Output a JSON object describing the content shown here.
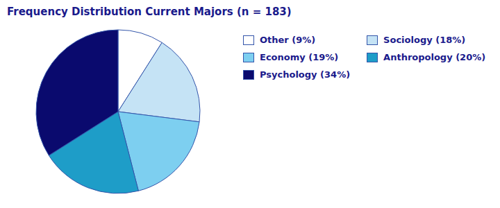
{
  "chart_data": {
    "type": "pie",
    "title": "Frequency Distribution Current Majors (n = 183)",
    "categories": [
      "Other (9%)",
      "Sociology (18%)",
      "Economy (19%)",
      "Anthropology (20%)",
      "Psychology (34%)"
    ],
    "values": [
      9,
      18,
      19,
      20,
      34
    ],
    "colors": [
      "#FFFFFF",
      "#C5E3F5",
      "#7DCFF0",
      "#1E9DC8",
      "#0A0A6E"
    ]
  }
}
